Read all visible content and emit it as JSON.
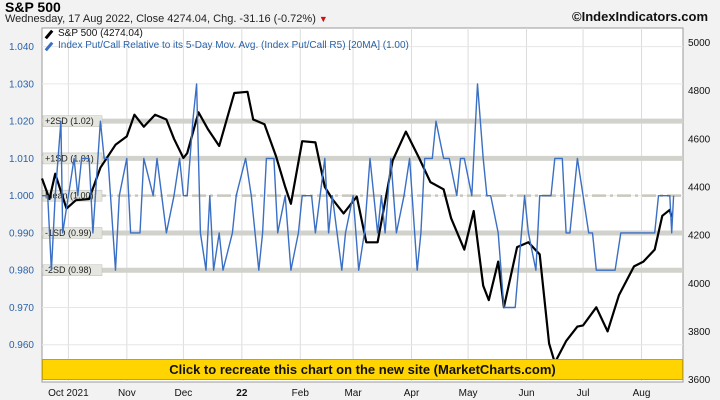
{
  "header": {
    "title": "S&P 500",
    "subtitle": "Wednesday, 17 Aug 2022, Close 4274.04, Chg. -31.16 (-0.72%)",
    "change_direction_icon": "down-triangle-icon",
    "brand": "©IndexIndicators.com"
  },
  "legend": {
    "items": [
      "S&P 500 (4274.04)",
      "Index Put/Call Relative to its 5-Day Mov. Avg. (Index Put/Call R5) [20MA] (1.00)"
    ]
  },
  "banner": {
    "label": "Click to recreate this chart on the new site (MarketCharts.com)"
  },
  "colors": {
    "spx": "#000000",
    "pcr": "#3a6fc4",
    "band": "#d2d2cc",
    "banner": "#ffd400",
    "left_axis": "#2a62a8",
    "down": "#d01010"
  },
  "chart_data": {
    "type": "line",
    "title": "S&P 500",
    "x_tick_labels": [
      "Oct 2021",
      "Nov",
      "Dec",
      "22",
      "Feb",
      "Mar",
      "Apr",
      "May",
      "Jun",
      "Jul",
      "Aug"
    ],
    "x_tick_dates": [
      "2021-10-01",
      "2021-11-01",
      "2021-12-01",
      "2022-01-01",
      "2022-02-01",
      "2022-03-01",
      "2022-04-01",
      "2022-05-01",
      "2022-06-01",
      "2022-07-01",
      "2022-08-01"
    ],
    "x_range": [
      "2021-09-17",
      "2022-08-23"
    ],
    "left_axis": {
      "ylim": [
        0.95,
        1.045
      ],
      "ticks": [
        "0.960",
        "0.970",
        "0.980",
        "0.990",
        "1.000",
        "1.010",
        "1.020",
        "1.030",
        "1.040"
      ]
    },
    "right_axis": {
      "ylim": [
        3590,
        5060
      ],
      "ticks": [
        "3600",
        "3800",
        "4000",
        "4200",
        "4400",
        "4600",
        "4800",
        "5000"
      ]
    },
    "bands": [
      {
        "label": "+2SD (1.02)",
        "value": 1.02,
        "style": "band"
      },
      {
        "label": "+1SD (1.01)",
        "value": 1.01,
        "style": "band"
      },
      {
        "label": "Mean (1.00)",
        "value": 1.0,
        "style": "dashdot"
      },
      {
        "label": "-1SD (0.99)",
        "value": 0.99,
        "style": "band"
      },
      {
        "label": "-2SD (0.98)",
        "value": 0.98,
        "style": "band"
      }
    ],
    "grid": true,
    "legend_position": "top-left",
    "series": [
      {
        "name": "S&P 500 (4274.04)",
        "axis": "right",
        "points": [
          [
            "2021-09-17",
            4435
          ],
          [
            "2021-09-21",
            4350
          ],
          [
            "2021-09-24",
            4455
          ],
          [
            "2021-09-30",
            4310
          ],
          [
            "2021-10-05",
            4345
          ],
          [
            "2021-10-12",
            4350
          ],
          [
            "2021-10-18",
            4480
          ],
          [
            "2021-10-26",
            4575
          ],
          [
            "2021-11-01",
            4610
          ],
          [
            "2021-11-05",
            4700
          ],
          [
            "2021-11-10",
            4650
          ],
          [
            "2021-11-16",
            4700
          ],
          [
            "2021-11-22",
            4680
          ],
          [
            "2021-11-26",
            4600
          ],
          [
            "2021-12-01",
            4520
          ],
          [
            "2021-12-03",
            4540
          ],
          [
            "2021-12-09",
            4710
          ],
          [
            "2021-12-14",
            4640
          ],
          [
            "2021-12-20",
            4570
          ],
          [
            "2021-12-28",
            4790
          ],
          [
            "2022-01-04",
            4795
          ],
          [
            "2022-01-07",
            4680
          ],
          [
            "2022-01-13",
            4660
          ],
          [
            "2022-01-19",
            4530
          ],
          [
            "2022-01-24",
            4400
          ],
          [
            "2022-01-27",
            4330
          ],
          [
            "2022-02-02",
            4590
          ],
          [
            "2022-02-09",
            4585
          ],
          [
            "2022-02-14",
            4400
          ],
          [
            "2022-02-18",
            4350
          ],
          [
            "2022-02-24",
            4290
          ],
          [
            "2022-03-03",
            4360
          ],
          [
            "2022-03-08",
            4170
          ],
          [
            "2022-03-14",
            4170
          ],
          [
            "2022-03-22",
            4510
          ],
          [
            "2022-03-29",
            4630
          ],
          [
            "2022-04-05",
            4520
          ],
          [
            "2022-04-11",
            4420
          ],
          [
            "2022-04-18",
            4390
          ],
          [
            "2022-04-22",
            4270
          ],
          [
            "2022-04-29",
            4140
          ],
          [
            "2022-05-04",
            4300
          ],
          [
            "2022-05-09",
            3990
          ],
          [
            "2022-05-12",
            3930
          ],
          [
            "2022-05-17",
            4090
          ],
          [
            "2022-05-20",
            3900
          ],
          [
            "2022-05-27",
            4150
          ],
          [
            "2022-06-02",
            4170
          ],
          [
            "2022-06-08",
            4120
          ],
          [
            "2022-06-13",
            3750
          ],
          [
            "2022-06-16",
            3670
          ],
          [
            "2022-06-22",
            3760
          ],
          [
            "2022-06-28",
            3820
          ],
          [
            "2022-07-01",
            3825
          ],
          [
            "2022-07-08",
            3900
          ],
          [
            "2022-07-14",
            3800
          ],
          [
            "2022-07-20",
            3950
          ],
          [
            "2022-07-28",
            4070
          ],
          [
            "2022-08-02",
            4090
          ],
          [
            "2022-08-08",
            4140
          ],
          [
            "2022-08-12",
            4280
          ],
          [
            "2022-08-16",
            4305
          ],
          [
            "2022-08-17",
            4274
          ]
        ]
      },
      {
        "name": "Index Put/Call Relative to its 5-Day Mov. Avg. (Index Put/Call R5) [20MA] (1.00)",
        "axis": "left",
        "points": [
          [
            "2021-09-17",
            1.0
          ],
          [
            "2021-09-20",
            1.0
          ],
          [
            "2021-09-22",
            0.98
          ],
          [
            "2021-09-24",
            1.0
          ],
          [
            "2021-09-27",
            1.02
          ],
          [
            "2021-09-28",
            0.99
          ],
          [
            "2021-10-01",
            1.0
          ],
          [
            "2021-10-04",
            1.01
          ],
          [
            "2021-10-06",
            1.0
          ],
          [
            "2021-10-08",
            1.01
          ],
          [
            "2021-10-12",
            1.01
          ],
          [
            "2021-10-14",
            0.99
          ],
          [
            "2021-10-18",
            1.02
          ],
          [
            "2021-10-20",
            1.01
          ],
          [
            "2021-10-22",
            1.01
          ],
          [
            "2021-10-26",
            0.98
          ],
          [
            "2021-10-28",
            1.0
          ],
          [
            "2021-11-01",
            1.01
          ],
          [
            "2021-11-03",
            0.99
          ],
          [
            "2021-11-08",
            0.99
          ],
          [
            "2021-11-10",
            1.01
          ],
          [
            "2021-11-15",
            1.0
          ],
          [
            "2021-11-17",
            1.01
          ],
          [
            "2021-11-22",
            0.99
          ],
          [
            "2021-11-26",
            1.0
          ],
          [
            "2021-11-29",
            1.01
          ],
          [
            "2021-12-01",
            1.0
          ],
          [
            "2021-12-03",
            1.0
          ],
          [
            "2021-12-06",
            1.02
          ],
          [
            "2021-12-08",
            1.03
          ],
          [
            "2021-12-10",
            0.99
          ],
          [
            "2021-12-13",
            0.98
          ],
          [
            "2021-12-15",
            1.0
          ],
          [
            "2021-12-17",
            0.98
          ],
          [
            "2021-12-20",
            0.99
          ],
          [
            "2021-12-22",
            0.98
          ],
          [
            "2021-12-27",
            0.99
          ],
          [
            "2021-12-29",
            1.0
          ],
          [
            "2022-01-03",
            1.01
          ],
          [
            "2022-01-06",
            1.0
          ],
          [
            "2022-01-10",
            0.98
          ],
          [
            "2022-01-12",
            0.99
          ],
          [
            "2022-01-14",
            1.01
          ],
          [
            "2022-01-18",
            1.01
          ],
          [
            "2022-01-20",
            0.99
          ],
          [
            "2022-01-24",
            1.0
          ],
          [
            "2022-01-27",
            0.98
          ],
          [
            "2022-01-31",
            0.99
          ],
          [
            "2022-02-02",
            1.0
          ],
          [
            "2022-02-07",
            1.0
          ],
          [
            "2022-02-09",
            0.99
          ],
          [
            "2022-02-14",
            1.01
          ],
          [
            "2022-02-16",
            0.99
          ],
          [
            "2022-02-18",
            1.0
          ],
          [
            "2022-02-23",
            0.98
          ],
          [
            "2022-02-25",
            0.99
          ],
          [
            "2022-03-01",
            1.0
          ],
          [
            "2022-03-04",
            0.98
          ],
          [
            "2022-03-07",
            0.99
          ],
          [
            "2022-03-10",
            1.01
          ],
          [
            "2022-03-14",
            0.99
          ],
          [
            "2022-03-16",
            1.0
          ],
          [
            "2022-03-18",
            0.99
          ],
          [
            "2022-03-21",
            1.01
          ],
          [
            "2022-03-24",
            0.99
          ],
          [
            "2022-03-28",
            1.0
          ],
          [
            "2022-03-31",
            1.01
          ],
          [
            "2022-04-04",
            0.98
          ],
          [
            "2022-04-06",
            0.99
          ],
          [
            "2022-04-08",
            1.01
          ],
          [
            "2022-04-12",
            1.01
          ],
          [
            "2022-04-14",
            1.02
          ],
          [
            "2022-04-18",
            1.01
          ],
          [
            "2022-04-21",
            1.01
          ],
          [
            "2022-04-25",
            1.0
          ],
          [
            "2022-04-27",
            1.01
          ],
          [
            "2022-04-29",
            1.01
          ],
          [
            "2022-05-03",
            1.0
          ],
          [
            "2022-05-06",
            1.03
          ],
          [
            "2022-05-09",
            1.01
          ],
          [
            "2022-05-11",
            1.0
          ],
          [
            "2022-05-13",
            1.0
          ],
          [
            "2022-05-17",
            0.99
          ],
          [
            "2022-05-20",
            0.97
          ],
          [
            "2022-05-26",
            0.97
          ],
          [
            "2022-05-31",
            1.0
          ],
          [
            "2022-06-02",
            0.99
          ],
          [
            "2022-06-06",
            0.98
          ],
          [
            "2022-06-08",
            1.0
          ],
          [
            "2022-06-10",
            1.0
          ],
          [
            "2022-06-14",
            1.0
          ],
          [
            "2022-06-16",
            1.01
          ],
          [
            "2022-06-20",
            1.01
          ],
          [
            "2022-06-22",
            0.99
          ],
          [
            "2022-06-24",
            0.99
          ],
          [
            "2022-06-28",
            1.01
          ],
          [
            "2022-07-01",
            1.0
          ],
          [
            "2022-07-04",
            0.99
          ],
          [
            "2022-07-06",
            0.99
          ],
          [
            "2022-07-08",
            0.98
          ],
          [
            "2022-07-12",
            0.98
          ],
          [
            "2022-07-14",
            0.98
          ],
          [
            "2022-07-18",
            0.98
          ],
          [
            "2022-07-21",
            0.99
          ],
          [
            "2022-07-26",
            0.99
          ],
          [
            "2022-07-29",
            0.99
          ],
          [
            "2022-08-01",
            0.99
          ],
          [
            "2022-08-04",
            0.99
          ],
          [
            "2022-08-08",
            0.99
          ],
          [
            "2022-08-10",
            1.0
          ],
          [
            "2022-08-12",
            1.0
          ],
          [
            "2022-08-16",
            1.0
          ],
          [
            "2022-08-17",
            0.99
          ],
          [
            "2022-08-18",
            1.0
          ]
        ]
      }
    ]
  }
}
